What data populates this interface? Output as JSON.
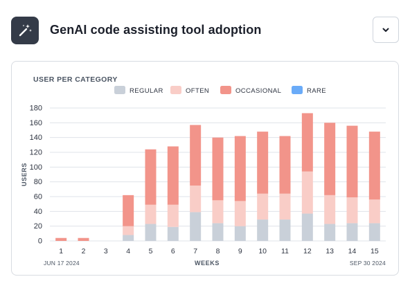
{
  "header": {
    "title": "GenAI code assisting tool adoption",
    "icon": "magic-wand-icon",
    "collapse_icon": "chevron-down-icon"
  },
  "chart_data": {
    "type": "bar",
    "stacked": true,
    "title": "USER PER CATEGORY",
    "xlabel": "WEEKS",
    "ylabel": "USERS",
    "ylim": [
      0,
      180
    ],
    "yticks": [
      0,
      20,
      40,
      60,
      80,
      100,
      120,
      140,
      160,
      180
    ],
    "grid": true,
    "legend_position": "top",
    "categories": [
      "1",
      "2",
      "3",
      "4",
      "5",
      "6",
      "7",
      "8",
      "9",
      "10",
      "11",
      "12",
      "13",
      "14",
      "15"
    ],
    "x_start_label": "JUN 17 2024",
    "x_end_label": "SEP 30 2024",
    "series": [
      {
        "name": "REGULAR",
        "color": "#c9d0d9",
        "values": [
          0,
          0,
          0,
          8,
          23,
          19,
          39,
          24,
          20,
          29,
          29,
          37,
          23,
          24,
          24
        ]
      },
      {
        "name": "OFTEN",
        "color": "#f9cdc7",
        "values": [
          0,
          0,
          0,
          12,
          26,
          30,
          36,
          31,
          34,
          35,
          35,
          57,
          39,
          35,
          32
        ]
      },
      {
        "name": "OCCASIONAL",
        "color": "#f2948a",
        "values": [
          4,
          4,
          0,
          42,
          75,
          79,
          82,
          85,
          88,
          84,
          78,
          79,
          98,
          97,
          92
        ]
      },
      {
        "name": "RARE",
        "color": "#6aabf8",
        "values": [
          0,
          0,
          0,
          0,
          0,
          0,
          0,
          0,
          0,
          0,
          0,
          0,
          0,
          0,
          0
        ]
      }
    ]
  }
}
